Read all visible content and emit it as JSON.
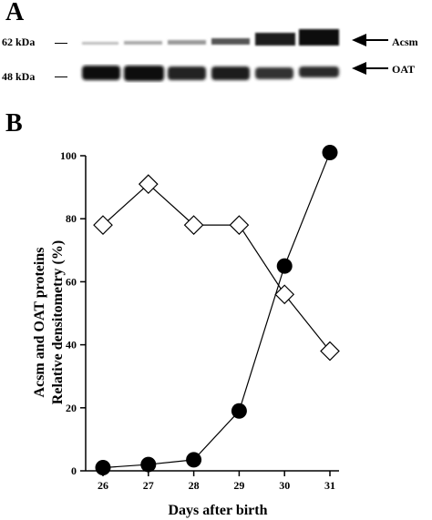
{
  "panel_a": {
    "label": "A",
    "markers": [
      "62 kDa",
      "48 kDa"
    ],
    "bands": [
      "Acsm",
      "OAT"
    ],
    "lanes": 6
  },
  "panel_b": {
    "label": "B"
  },
  "chart_data": {
    "type": "line",
    "title": "",
    "xlabel": "Days after birth",
    "ylabel": [
      "Acsm and OAT proteins",
      "Relative densitometry (%)"
    ],
    "x": [
      26,
      27,
      28,
      29,
      30,
      31
    ],
    "xlim": [
      26,
      31
    ],
    "ylim": [
      0,
      100
    ],
    "yticks": [
      0,
      20,
      40,
      60,
      80,
      100
    ],
    "grid": false,
    "legend": "none",
    "series": [
      {
        "marker": "diamond-open",
        "values": [
          78,
          91,
          78,
          78,
          56,
          38
        ]
      },
      {
        "marker": "circle-filled",
        "values": [
          1,
          2,
          3.5,
          19,
          65,
          101
        ]
      }
    ]
  }
}
